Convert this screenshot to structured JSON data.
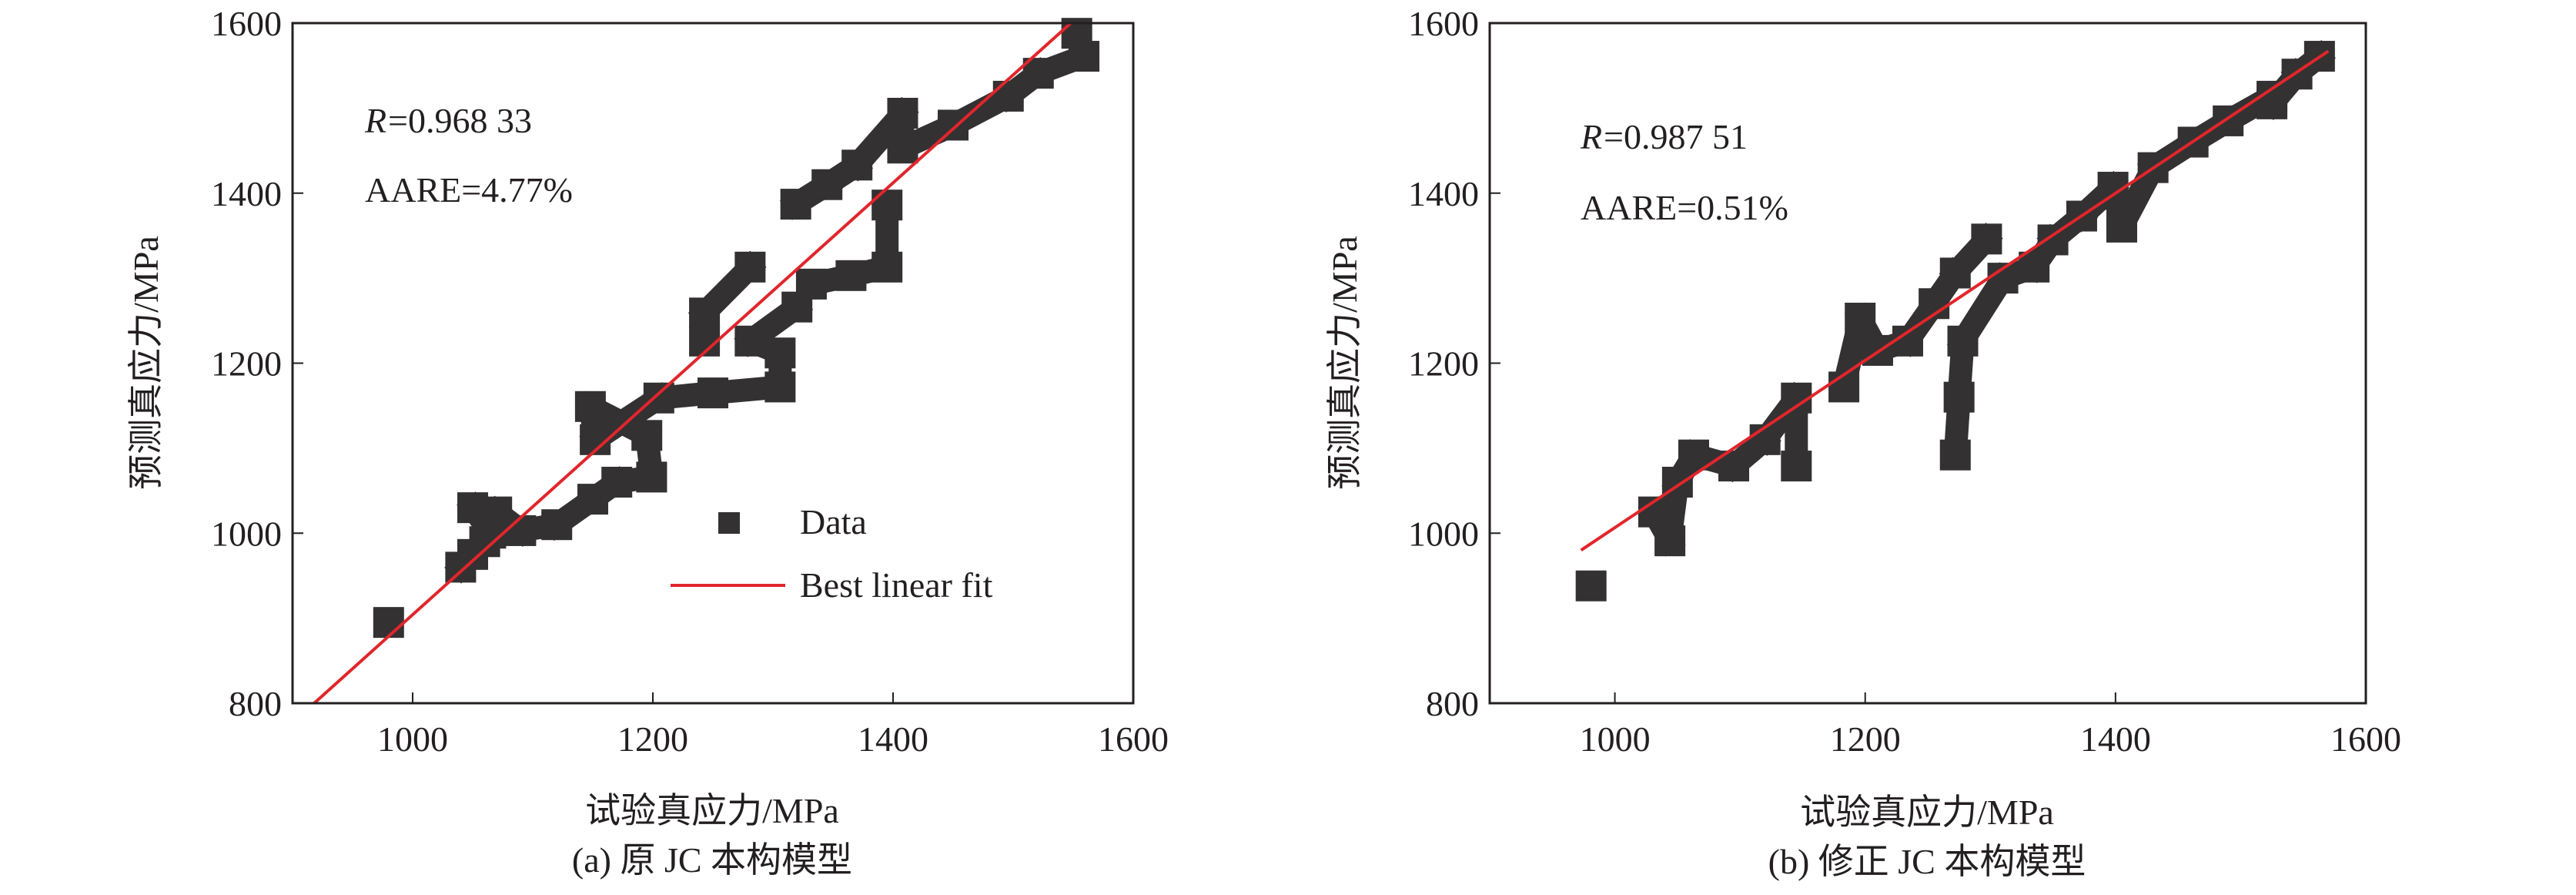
{
  "colors": {
    "data": "#333132",
    "fit": "#e0262b",
    "axis": "#231f20"
  },
  "chart_data": [
    {
      "type": "scatter",
      "caption": "(a) 原 JC 本构模型",
      "xlabel": "试验真应力/MPa",
      "ylabel": "预测真应力/MPa",
      "xlim": [
        900,
        1600
      ],
      "ylim": [
        800,
        1600
      ],
      "xticks": [
        "1000",
        "1200",
        "1400",
        "1600"
      ],
      "yticks": [
        "800",
        "1000",
        "1200",
        "1400",
        "1600"
      ],
      "grid": false,
      "annotation_r_label": "R",
      "annotation_r_value": "=0.968 33",
      "annotation_aare": "AARE=4.77%",
      "legend": {
        "placement": "center-right",
        "data_label": "Data",
        "fit_label": "Best linear fit"
      },
      "series": [
        {
          "name": "Data",
          "points": [
            [
              980,
              895
            ],
            [
              1040,
              960
            ],
            [
              1050,
              975
            ],
            [
              1060,
              990
            ],
            [
              1065,
              1000
            ],
            [
              1050,
              1030
            ],
            [
              1070,
              1025
            ],
            [
              1090,
              1003
            ],
            [
              1120,
              1010
            ],
            [
              1150,
              1040
            ],
            [
              1170,
              1060
            ],
            [
              1199,
              1066
            ],
            [
              1195,
              1115
            ],
            [
              1148,
              1149
            ],
            [
              1152,
              1110
            ],
            [
              1205,
              1159
            ],
            [
              1250,
              1165
            ],
            [
              1306,
              1172
            ],
            [
              1306,
              1212
            ],
            [
              1281,
              1226
            ],
            [
              1320,
              1266
            ],
            [
              1243,
              1259
            ],
            [
              1281,
              1313
            ],
            [
              1243,
              1226
            ],
            [
              1332,
              1293
            ],
            [
              1365,
              1303
            ],
            [
              1395,
              1313
            ],
            [
              1395,
              1386
            ],
            [
              1319,
              1387
            ],
            [
              1345,
              1410
            ],
            [
              1370,
              1433
            ],
            [
              1408,
              1494
            ],
            [
              1408,
              1453
            ],
            [
              1450,
              1480
            ],
            [
              1496,
              1514
            ],
            [
              1521,
              1541
            ],
            [
              1559,
              1561
            ],
            [
              1553,
              1588
            ]
          ]
        },
        {
          "name": "Best linear fit",
          "line": [
            [
              918,
              800
            ],
            [
              1548,
              1600
            ]
          ]
        }
      ]
    },
    {
      "type": "scatter",
      "caption": "(b) 修正 JC 本构模型",
      "xlabel": "试验真应力/MPa",
      "ylabel": "预测真应力/MPa",
      "xlim": [
        900,
        1600
      ],
      "ylim": [
        800,
        1600
      ],
      "xticks": [
        "1000",
        "1200",
        "1400",
        "1600"
      ],
      "yticks": [
        "800",
        "1000",
        "1200",
        "1400",
        "1600"
      ],
      "grid": false,
      "annotation_r_label": "R",
      "annotation_r_value": "=0.987 51",
      "annotation_aare": "AARE=0.51%",
      "series": [
        {
          "name": "Data",
          "points": [
            [
              981,
              938
            ],
            [
              1031,
              1025
            ],
            [
              1044,
              991
            ],
            [
              1050,
              1060
            ],
            [
              1063,
              1092
            ],
            [
              1095,
              1079
            ],
            [
              1120,
              1110
            ],
            [
              1145,
              1159
            ],
            [
              1145,
              1079
            ],
            [
              1183,
              1172
            ],
            [
              1196,
              1253
            ],
            [
              1210,
              1215
            ],
            [
              1234,
              1226
            ],
            [
              1255,
              1270
            ],
            [
              1272,
              1306
            ],
            [
              1297,
              1346
            ],
            [
              1272,
              1092
            ],
            [
              1275,
              1160
            ],
            [
              1278,
              1226
            ],
            [
              1310,
              1300
            ],
            [
              1335,
              1313
            ],
            [
              1350,
              1345
            ],
            [
              1373,
              1373
            ],
            [
              1398,
              1407
            ],
            [
              1405,
              1360
            ],
            [
              1430,
              1430
            ],
            [
              1462,
              1460
            ],
            [
              1490,
              1485
            ],
            [
              1525,
              1514
            ],
            [
              1525,
              1505
            ],
            [
              1545,
              1540
            ],
            [
              1563,
              1561
            ]
          ]
        },
        {
          "name": "Best linear fit",
          "line": [
            [
              973,
              980
            ],
            [
              1570,
              1567
            ]
          ]
        }
      ]
    }
  ]
}
